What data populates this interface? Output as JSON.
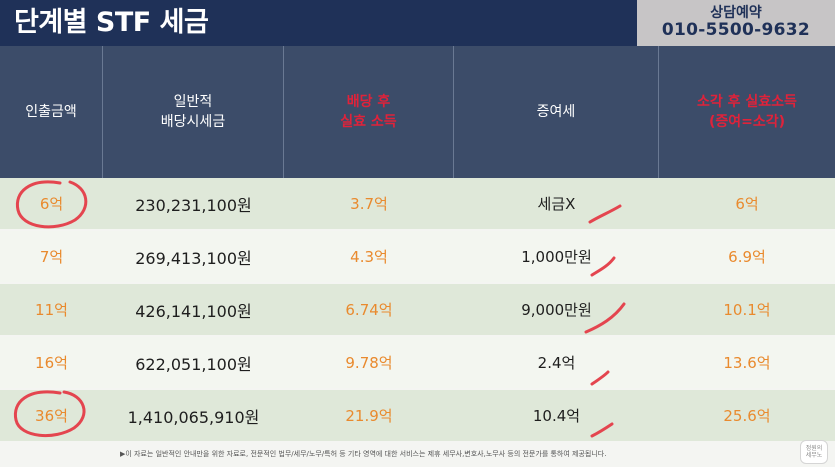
{
  "header": {
    "title": "단계별 STF 세금",
    "contact_label": "상담예약",
    "contact_phone": "010-5500-9632"
  },
  "table": {
    "columns": [
      {
        "label": "인출금액",
        "style": "white"
      },
      {
        "label": "일반적\n배당시세금",
        "style": "white"
      },
      {
        "label": "배당 후\n실효 소득",
        "style": "red"
      },
      {
        "label": "증여세",
        "style": "white"
      },
      {
        "label": "소각 후 실효소득\n(증여=소각)",
        "style": "red"
      }
    ],
    "rows": [
      [
        "6억",
        "230,231,100원",
        "3.7억",
        "세금X",
        "6억"
      ],
      [
        "7억",
        "269,413,100원",
        "4.3억",
        "1,000만원",
        "6.9억"
      ],
      [
        "11억",
        "426,141,100원",
        "6.74억",
        "9,000만원",
        "10.1억"
      ],
      [
        "16억",
        "622,051,100원",
        "9.78억",
        "2.4억",
        "13.6억"
      ],
      [
        "36억",
        "1,410,065,910원",
        "21.9억",
        "10.4억",
        "25.6억"
      ]
    ]
  },
  "footer": {
    "note": "▶이 자료는 일반적인 안내만을 위한 자료로, 전문적인 법무/세무/노무/특허 등 기타 영역에 대한 서비스는 제휴 세무사,변호사,노무사 등의 전문가를 통하여 제공됩니다.",
    "logo_text": "정원의\n세무노"
  },
  "colors": {
    "navy": "#1f3158",
    "header_row": "#3c4c69",
    "accent_red": "#e0223a",
    "accent_orange": "#e98a2e",
    "row_green": "#dfe8d9",
    "row_light": "#f3f6f0"
  }
}
